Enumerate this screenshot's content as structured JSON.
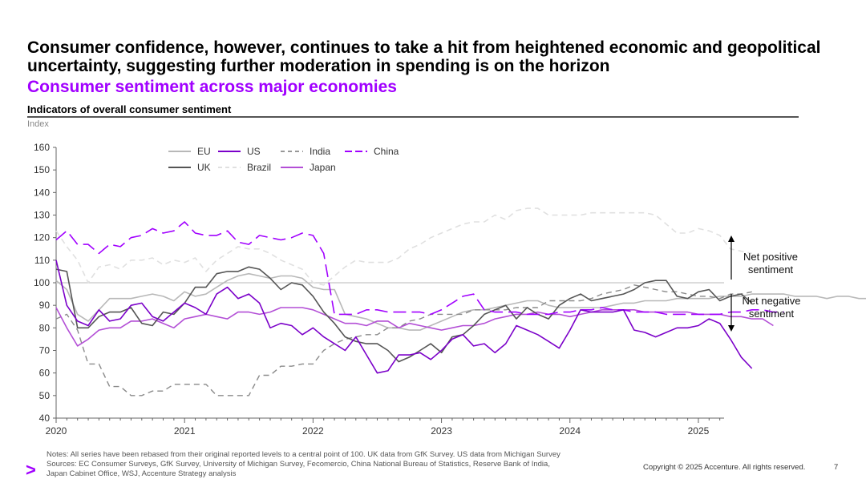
{
  "slide": {
    "headline": "Consumer confidence, however, continues to take a hit from heightened economic and geopolitical uncertainty, suggesting further moderation in spending is on the horizon",
    "subheadline": "Consumer sentiment across major economies",
    "chart_title": "Indicators of overall consumer sentiment",
    "unit_label": "Index",
    "notes": "Notes: All series have been rebased from their original reported levels to a central point of 100. UK data from GfK Survey. US data from Michigan Survey",
    "sources_line1": "Sources: EC Consumer Surveys, GfK Survey, University of Michigan Survey, Fecomercio, China National Bureau of Statistics, Reserve Bank of India,",
    "sources_line2": "Japan Cabinet Office, WSJ, Accenture Strategy analysis",
    "copyright": "Copyright © 2025 Accenture. All rights reserved.",
    "page_number": "7",
    "logo_glyph": ">",
    "accent_color": "#a100ff"
  },
  "chart_data": {
    "type": "line",
    "title": "Indicators of overall consumer sentiment",
    "ylabel": "Index",
    "xlabel": "",
    "ylim": [
      40,
      160
    ],
    "yticks": [
      40,
      50,
      60,
      70,
      80,
      90,
      100,
      110,
      120,
      130,
      140,
      150,
      160
    ],
    "xlim": [
      2020.0,
      2025.2
    ],
    "xticks": [
      2020,
      2021,
      2022,
      2023,
      2024,
      2025
    ],
    "xtick_labels": [
      "2020",
      "2021",
      "2022",
      "2023",
      "2024",
      "2025"
    ],
    "x_start": 2020.0,
    "x_step_months": 1,
    "reference_line": 100,
    "grid": false,
    "legend_position": "top-left",
    "annotations": {
      "positive": "Net positive sentiment",
      "negative": "Net negative sentiment"
    },
    "series": [
      {
        "name": "EU",
        "color": "#b8b8b8",
        "dash": "solid",
        "width": 1.6,
        "values": [
          101,
          97,
          86,
          83,
          88,
          93,
          93,
          93,
          94,
          95,
          94,
          92,
          96,
          94,
          95,
          98,
          101,
          103,
          104,
          103,
          102,
          103,
          103,
          102,
          98,
          97,
          97,
          86,
          85,
          84,
          82,
          80,
          80,
          79,
          79,
          81,
          83,
          85,
          87,
          88,
          88,
          89,
          90,
          91,
          92,
          92,
          90,
          89,
          89,
          89,
          89,
          89,
          90,
          91,
          91,
          92,
          92,
          92,
          93,
          93,
          93,
          93,
          94,
          94,
          94,
          95,
          95,
          95,
          95,
          94,
          94,
          94,
          93,
          94,
          94,
          93,
          93
        ]
      },
      {
        "name": "US",
        "color": "#7b00c9",
        "dash": "solid",
        "width": 1.6,
        "values": [
          110,
          90,
          83,
          81,
          88,
          83,
          84,
          90,
          91,
          85,
          83,
          87,
          91,
          89,
          86,
          95,
          98,
          93,
          95,
          91,
          80,
          82,
          81,
          77,
          80,
          76,
          73,
          70,
          76,
          68,
          60,
          61,
          68,
          68,
          69,
          66,
          70,
          75,
          77,
          72,
          73,
          69,
          73,
          81,
          79,
          77,
          74,
          71,
          79,
          88,
          87,
          87,
          87,
          88,
          79,
          78,
          76,
          78,
          80,
          80,
          81,
          84,
          82,
          75,
          67,
          62
        ]
      },
      {
        "name": "India",
        "color": "#8a8a8a",
        "dash": "7,5",
        "width": 1.4,
        "values": [
          84,
          86,
          79,
          64,
          64,
          54,
          54,
          50,
          50,
          52,
          52,
          55,
          55,
          55,
          55,
          50,
          50,
          50,
          50,
          59,
          59,
          63,
          63,
          64,
          64,
          70,
          73,
          75,
          76,
          77,
          77,
          80,
          80,
          83,
          84,
          86,
          86,
          86,
          86,
          88,
          88,
          88,
          88,
          89,
          89,
          89,
          92,
          92,
          92,
          92,
          93,
          95,
          96,
          97,
          99,
          98,
          97,
          96,
          96,
          95,
          94,
          94,
          93,
          95,
          95,
          96
        ]
      },
      {
        "name": "China",
        "color": "#a100ff",
        "dash": "16,7",
        "width": 1.6,
        "values": [
          119,
          123,
          117,
          117,
          113,
          117,
          116,
          120,
          121,
          124,
          122,
          123,
          127,
          122,
          121,
          121,
          123,
          118,
          117,
          121,
          120,
          119,
          120,
          122,
          121,
          113,
          86,
          86,
          86,
          88,
          88,
          87,
          87,
          87,
          87,
          86,
          88,
          91,
          94,
          95,
          88,
          87,
          87,
          87,
          86,
          86,
          86,
          87,
          87,
          88,
          88,
          89,
          88,
          88,
          87,
          87,
          87,
          86,
          86,
          86,
          86,
          86,
          86,
          87,
          87,
          88,
          88,
          87,
          87
        ]
      },
      {
        "name": "UK",
        "color": "#555555",
        "dash": "solid",
        "width": 1.6,
        "values": [
          106,
          105,
          80,
          80,
          85,
          87,
          87,
          89,
          82,
          81,
          87,
          86,
          91,
          98,
          98,
          104,
          105,
          105,
          107,
          106,
          102,
          97,
          100,
          99,
          94,
          87,
          82,
          76,
          74,
          73,
          73,
          70,
          65,
          67,
          70,
          73,
          69,
          76,
          77,
          81,
          86,
          88,
          90,
          84,
          89,
          86,
          84,
          90,
          93,
          95,
          92,
          93,
          94,
          95,
          97,
          100,
          101,
          101,
          94,
          93,
          96,
          97,
          92,
          94,
          95,
          91
        ]
      },
      {
        "name": "Brazil",
        "color": "#e0e0e0",
        "dash": "7,5",
        "width": 1.6,
        "values": [
          123,
          116,
          110,
          100,
          107,
          108,
          106,
          110,
          110,
          111,
          108,
          110,
          109,
          111,
          105,
          110,
          113,
          116,
          115,
          115,
          113,
          110,
          108,
          106,
          100,
          99,
          103,
          107,
          110,
          109,
          109,
          109,
          111,
          115,
          117,
          120,
          122,
          124,
          126,
          127,
          127,
          130,
          128,
          132,
          133,
          133,
          130,
          130,
          130,
          130,
          131,
          131,
          131,
          131,
          131,
          131,
          130,
          126,
          122,
          122,
          124,
          123,
          121,
          115,
          114,
          113
        ]
      },
      {
        "name": "Japan",
        "color": "#b34fd6",
        "dash": "solid",
        "width": 1.6,
        "values": [
          89,
          80,
          72,
          75,
          79,
          80,
          80,
          83,
          83,
          84,
          82,
          80,
          84,
          85,
          86,
          85,
          84,
          87,
          87,
          86,
          87,
          89,
          89,
          89,
          88,
          86,
          84,
          82,
          82,
          81,
          83,
          83,
          80,
          82,
          81,
          80,
          79,
          80,
          81,
          81,
          82,
          84,
          85,
          86,
          86,
          87,
          86,
          86,
          85,
          86,
          87,
          88,
          88,
          88,
          88,
          87,
          87,
          87,
          87,
          87,
          86,
          86,
          86,
          85,
          85,
          84,
          84,
          81
        ]
      }
    ]
  }
}
